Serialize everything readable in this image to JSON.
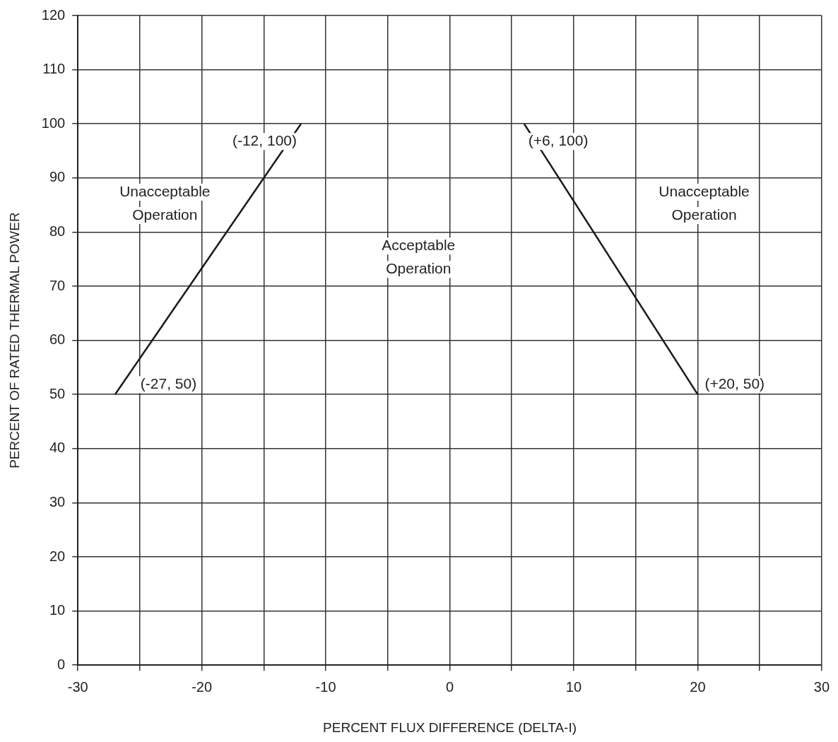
{
  "chart_data": {
    "type": "line",
    "xlabel": "PERCENT FLUX DIFFERENCE (DELTA-I)",
    "ylabel": "PERCENT OF RATED THERMAL POWER",
    "series": [
      {
        "x": [
          -27,
          -12
        ],
        "values": [
          50,
          100
        ],
        "color": "#1a1a1a"
      },
      {
        "x": [
          6,
          20
        ],
        "values": [
          100,
          50
        ],
        "color": "#1a1a1a"
      }
    ],
    "xlim": [
      -30,
      30
    ],
    "ylim": [
      0,
      120
    ],
    "xticks": [
      -30,
      {
        "value": -25,
        "label": null
      },
      -20,
      {
        "value": -15,
        "label": null
      },
      -10,
      {
        "value": -5,
        "label": null
      },
      0,
      {
        "value": 5,
        "label": null
      },
      10,
      {
        "value": 15,
        "label": null
      },
      20,
      {
        "value": 25,
        "label": null
      },
      30
    ],
    "yticks": [
      0,
      10,
      20,
      30,
      40,
      50,
      60,
      70,
      80,
      90,
      100,
      110,
      120
    ],
    "grid": true,
    "legend": false,
    "marker": "none",
    "line_style": "solid",
    "annotations": [
      {
        "text": "(-12, 100)",
        "x": -12,
        "y": 100
      },
      {
        "text": "(+6, 100)",
        "x": 6,
        "y": 100
      },
      {
        "text": "(-27, 50)",
        "x": -27,
        "y": 50
      },
      {
        "text": "(+20, 50)",
        "x": 20,
        "y": 50
      },
      "Unacceptable Operation",
      "Acceptable Operation",
      "Unacceptable Operation"
    ]
  }
}
